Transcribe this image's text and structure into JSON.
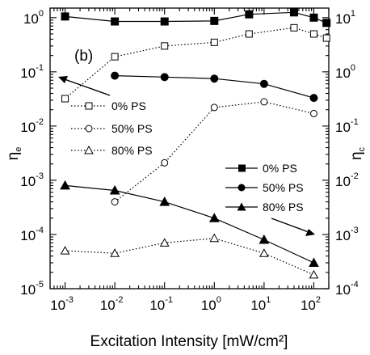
{
  "chart_data": {
    "type": "line",
    "panel_label": "(b)",
    "xlabel": "Excitation Intensity [mW/cm²]",
    "ylabel_left": "ηe",
    "ylabel_right": "ηc",
    "xscale": "log",
    "yscale_left": "log",
    "yscale_right": "log",
    "xlim": [
      0.0005,
      200
    ],
    "ylim_left": [
      1e-05,
      1.5
    ],
    "ylim_right": [
      0.0001,
      15
    ],
    "x_ticks": [
      {
        "value": 0.001,
        "base": "10",
        "exp": "-3"
      },
      {
        "value": 0.01,
        "base": "10",
        "exp": "-2"
      },
      {
        "value": 0.1,
        "base": "10",
        "exp": "-1"
      },
      {
        "value": 1,
        "base": "10",
        "exp": "0"
      },
      {
        "value": 10,
        "base": "10",
        "exp": "1"
      },
      {
        "value": 100,
        "base": "10",
        "exp": "2"
      }
    ],
    "y_left_ticks": [
      {
        "value": 1,
        "base": "10",
        "exp": "0"
      },
      {
        "value": 0.1,
        "base": "10",
        "exp": "-1"
      },
      {
        "value": 0.01,
        "base": "10",
        "exp": "-2"
      },
      {
        "value": 0.001,
        "base": "10",
        "exp": "-3"
      },
      {
        "value": 0.0001,
        "base": "10",
        "exp": "-4"
      },
      {
        "value": 1e-05,
        "base": "10",
        "exp": "-5"
      }
    ],
    "y_right_ticks": [
      {
        "value": 10,
        "base": "10",
        "exp": "1"
      },
      {
        "value": 1,
        "base": "10",
        "exp": "0"
      },
      {
        "value": 0.1,
        "base": "10",
        "exp": "-1"
      },
      {
        "value": 0.01,
        "base": "10",
        "exp": "-2"
      },
      {
        "value": 0.001,
        "base": "10",
        "exp": "-3"
      },
      {
        "value": 0.0001,
        "base": "10",
        "exp": "-4"
      }
    ],
    "legend_left": [
      {
        "label": "0% PS",
        "marker": "square-open"
      },
      {
        "label": "50% PS",
        "marker": "circle-open"
      },
      {
        "label": "80% PS",
        "marker": "triangle-open"
      }
    ],
    "legend_right": [
      {
        "label": "0% PS",
        "marker": "square-filled"
      },
      {
        "label": "50% PS",
        "marker": "circle-filled"
      },
      {
        "label": "80% PS",
        "marker": "triangle-filled"
      }
    ],
    "series": [
      {
        "name": "0% PS",
        "axis": "left",
        "marker": "square",
        "filled": true,
        "style": "solid",
        "x": [
          0.001,
          0.01,
          0.1,
          1,
          5,
          40,
          100,
          180
        ],
        "y": [
          1.05,
          0.85,
          0.85,
          0.87,
          1.15,
          1.25,
          1.0,
          0.8
        ]
      },
      {
        "name": "50% PS",
        "axis": "left",
        "marker": "circle",
        "filled": true,
        "style": "solid",
        "x": [
          0.01,
          0.1,
          1,
          10,
          100
        ],
        "y": [
          0.085,
          0.08,
          0.075,
          0.06,
          0.033
        ]
      },
      {
        "name": "80% PS",
        "axis": "left",
        "marker": "triangle",
        "filled": true,
        "style": "solid",
        "x": [
          0.001,
          0.01,
          0.1,
          1,
          10,
          100
        ],
        "y": [
          0.0008,
          0.00065,
          0.0004,
          0.0002,
          8e-05,
          3e-05
        ]
      },
      {
        "name": "0% PS",
        "axis": "left",
        "marker": "square",
        "filled": false,
        "style": "dotted",
        "x": [
          0.001,
          0.01,
          0.1,
          1,
          5,
          40,
          100,
          180
        ],
        "y": [
          0.032,
          0.19,
          0.3,
          0.35,
          0.5,
          0.65,
          0.5,
          0.42
        ]
      },
      {
        "name": "50% PS",
        "axis": "left",
        "marker": "circle",
        "filled": false,
        "style": "dotted",
        "x": [
          0.01,
          0.1,
          1,
          10,
          100
        ],
        "y": [
          0.0004,
          0.0021,
          0.022,
          0.028,
          0.017
        ]
      },
      {
        "name": "80% PS",
        "axis": "left",
        "marker": "triangle",
        "filled": false,
        "style": "dotted",
        "x": [
          0.001,
          0.01,
          0.1,
          1,
          10,
          100
        ],
        "y": [
          5e-05,
          4.5e-05,
          7e-05,
          8.5e-05,
          4.5e-05,
          1.8e-05
        ]
      }
    ],
    "grid": false
  }
}
